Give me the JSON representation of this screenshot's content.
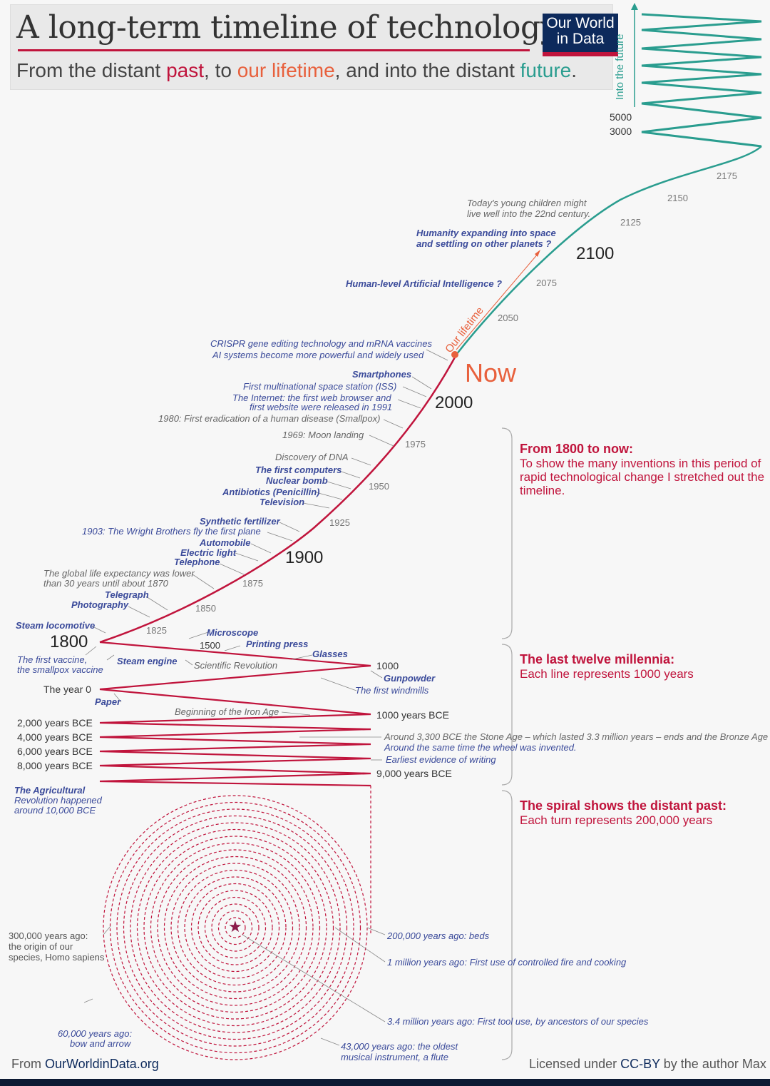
{
  "header": {
    "title": "A long-term timeline of technology",
    "subtitle_parts": [
      "From the distant ",
      "past",
      ", to ",
      "our lifetime",
      ", and into the distant ",
      "future",
      "."
    ],
    "logo_line1": "Our World",
    "logo_line2": "in Data"
  },
  "future_axis": {
    "label": "Into the future",
    "left_labels": [
      "5000",
      "3000"
    ]
  },
  "labels": {
    "now": "Now",
    "our_lifetime": "Our lifetime",
    "y2100": "2100",
    "y2000": "2000",
    "y1900": "1900",
    "y1800": "1800",
    "y2175": "2175",
    "y2150": "2150",
    "y2125": "2125",
    "y2075": "2075",
    "y2050": "2050",
    "y1975": "1975",
    "y1950": "1950",
    "y1925": "1925",
    "y1875": "1875",
    "y1850": "1850",
    "y1825": "1825",
    "y1500": "1500",
    "y1000": "1000",
    "year0": "The year 0",
    "bce1000": "1000 years BCE",
    "bce2000": "2,000 years BCE",
    "bce4000": "4,000 years BCE",
    "bce6000": "6,000 years BCE",
    "bce8000": "8,000 years BCE",
    "bce9000": "9,000 years BCE"
  },
  "annotations": {
    "children": "Today's young children might",
    "children2": "live well into the 22nd century.",
    "space": "Humanity expanding into space",
    "space2": "and settling on other planets ?",
    "ai_human": "Human-level Artificial Intelligence ?",
    "crispr": "CRISPR gene editing technology and mRNA vaccines",
    "ai_systems": "AI systems become more powerful and widely used",
    "smartphones": "Smartphones",
    "iss": "First multinational space station (ISS)",
    "internet": "The Internet: the first web browser and",
    "internet2": "first website were released in 1991",
    "smallpox": "1980: First eradication of a human disease (Smallpox)",
    "moon": "1969: Moon landing",
    "dna": "Discovery of DNA",
    "computers": "The first computers",
    "nuclear": "Nuclear bomb",
    "antibiotics": "Antibiotics (Penicillin)",
    "television": "Television",
    "fertilizer": "Synthetic fertilizer",
    "wright": "1903: The Wright Brothers fly the first plane",
    "automobile": "Automobile",
    "electric": "Electric light",
    "telephone": "Telephone",
    "life_exp": "The global life expectancy was lower",
    "life_exp2": "than 30 years until about 1870",
    "telegraph": "Telegraph",
    "photography": "Photography",
    "steam_loco": "Steam locomotive",
    "vaccine": "The first vaccine,",
    "vaccine2": "the smallpox vaccine",
    "steam_engine": "Steam engine",
    "microscope": "Microscope",
    "printing": "Printing press",
    "glasses": "Glasses",
    "sci_rev": "Scientific Revolution",
    "gunpowder": "Gunpowder",
    "windmills": "The first windmills",
    "paper": "Paper",
    "iron_age": "Beginning of the Iron Age",
    "bronze": "Around 3,300 BCE the Stone Age – which lasted 3.3 million years – ends and the Bronze Age begins.",
    "wheel": "Around the same time the wheel was invented.",
    "writing": "Earliest evidence of writing",
    "agri": "The Agricultural",
    "agri2": "Revolution happened",
    "agri3": "around 10,000 BCE",
    "beds": "200,000 years ago: beds",
    "fire": "1 million years ago: First use of controlled fire and cooking",
    "tool": "3.4 million years ago: First tool use, by ancestors of our species",
    "flute": "43,000 years ago: the oldest",
    "flute2": "musical instrument, a flute",
    "bow": "60,000 years ago:",
    "bow2": "bow and arrow",
    "sapiens": "300,000 years ago:",
    "sapiens2": "the origin of our",
    "sapiens3": "species, Homo sapiens"
  },
  "sidebar": {
    "s1_title": "From 1800 to now:",
    "s1_body": "To show the many inventions in this period of rapid technological change I stretched out the timeline.",
    "s2_title": "The last twelve millennia:",
    "s2_body": "Each line represents 1000 years",
    "s3_title": "The spiral shows the distant past:",
    "s3_body": "Each turn represents 200,000 years"
  },
  "footer": {
    "source_prefix": "From ",
    "source_link": "OurWorldinData.org",
    "license_prefix": "Licensed under ",
    "license_link": "CC-BY",
    "license_suffix": " by the author Max Roser"
  },
  "colors": {
    "past": "#c0143c",
    "lifetime": "#e8603c",
    "future": "#2a9d8f",
    "navy": "#0d2a5c",
    "annotation": "#3a4a9a"
  }
}
